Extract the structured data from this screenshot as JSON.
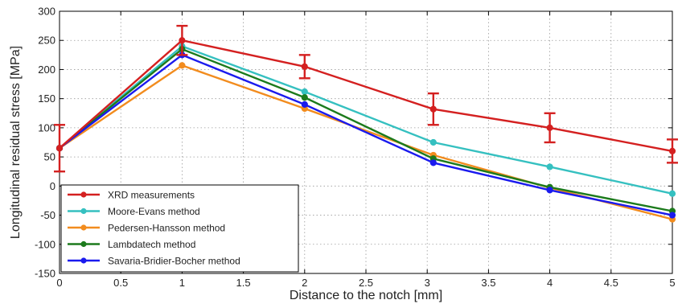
{
  "chart_data": {
    "type": "line",
    "xlabel": "Distance to the notch [mm]",
    "ylabel": "Longitudinal residual stress [MPa]",
    "xlim": [
      0,
      5
    ],
    "ylim": [
      -150,
      300
    ],
    "xticks": [
      0,
      0.5,
      1,
      1.5,
      2,
      2.5,
      3,
      3.5,
      4,
      4.5,
      5
    ],
    "xtick_labels": [
      "0",
      "0.5",
      "1",
      "1.5",
      "2",
      "2.5",
      "3",
      "3.5",
      "4",
      "4.5",
      "5"
    ],
    "yticks": [
      -150,
      -100,
      -50,
      0,
      50,
      100,
      150,
      200,
      250,
      300
    ],
    "ytick_labels": [
      "-150",
      "-100",
      "-50",
      "0",
      "50",
      "100",
      "150",
      "200",
      "250",
      "300"
    ],
    "grid": true,
    "legend_position": "bottom-left",
    "series": [
      {
        "name": "XRD measurements",
        "color": "#d42020",
        "x": [
          0,
          1,
          2,
          3.05,
          4,
          5
        ],
        "y": [
          65,
          250,
          205,
          132,
          100,
          60
        ],
        "error": [
          40,
          25,
          20,
          27,
          25,
          20
        ]
      },
      {
        "name": "Moore-Evans method",
        "color": "#35c0c0",
        "x": [
          0,
          1,
          2,
          3.05,
          4,
          5
        ],
        "y": [
          65,
          240,
          162,
          75,
          33,
          -13
        ]
      },
      {
        "name": "Pedersen-Hansson method",
        "color": "#f28c1e",
        "x": [
          0,
          1,
          2,
          3.05,
          4,
          5
        ],
        "y": [
          65,
          207,
          133,
          53,
          -3,
          -57
        ]
      },
      {
        "name": "Lambdatech method",
        "color": "#1c7a1c",
        "x": [
          0,
          1,
          2,
          3.05,
          4,
          5
        ],
        "y": [
          65,
          235,
          152,
          47,
          -2,
          -43
        ]
      },
      {
        "name": "Savaria-Bridier-Bocher method",
        "color": "#1a1aee",
        "x": [
          0,
          1,
          2,
          3.05,
          4,
          5
        ],
        "y": [
          65,
          225,
          140,
          40,
          -7,
          -50
        ]
      }
    ]
  }
}
